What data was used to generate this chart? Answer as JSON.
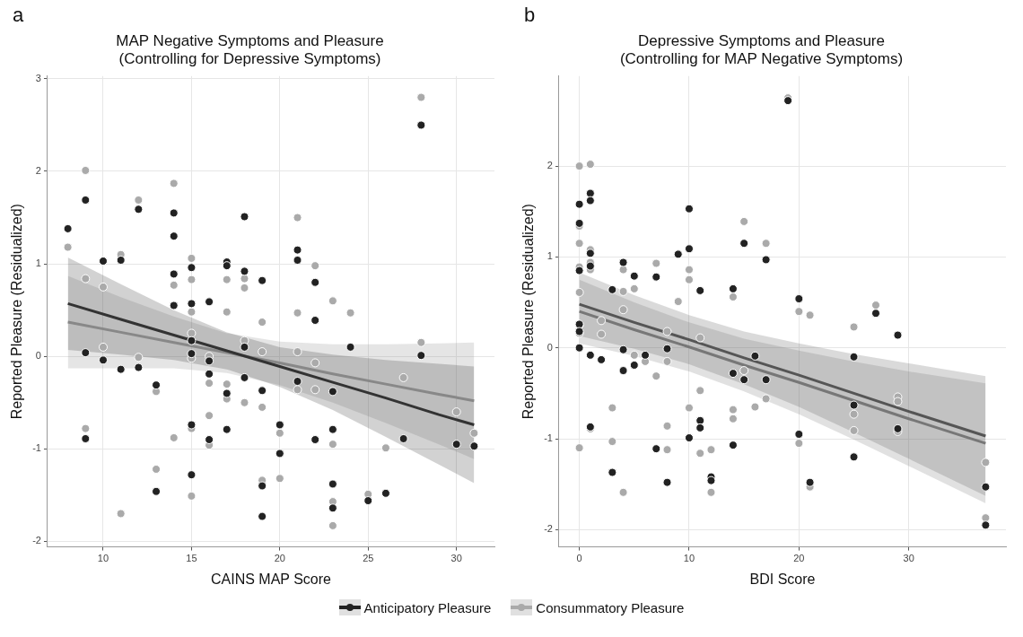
{
  "chart_data": [
    {
      "type": "scatter",
      "title": "MAP Negative Symptoms and Pleasure\n(Controlling for Depressive Symptoms)",
      "xlabel": "CAINS MAP Score",
      "ylabel": "Reported Pleasure (Residualized)",
      "annotations": [
        "a"
      ],
      "xlim": [
        6.85,
        32.15
      ],
      "ylim": [
        -2.06,
        3.03
      ],
      "xticks": [
        10,
        15,
        20,
        25,
        30
      ],
      "yticks": [
        -2,
        -1,
        0,
        1,
        2,
        3
      ],
      "grid": true,
      "legend": "bottom",
      "series": [
        {
          "type": "line",
          "color": "#333333",
          "x": [
            8,
            11,
            14,
            17,
            20,
            23,
            26,
            29,
            31
          ],
          "values": [
            0.57,
            0.4,
            0.23,
            0.06,
            -0.11,
            -0.28,
            -0.45,
            -0.63,
            -0.74
          ],
          "lower": [
            0.07,
            0.02,
            -0.04,
            -0.14,
            -0.33,
            -0.58,
            -0.87,
            -1.17,
            -1.37
          ],
          "upper": [
            1.07,
            0.78,
            0.5,
            0.26,
            0.1,
            0.02,
            -0.04,
            -0.08,
            -0.11
          ]
        },
        {
          "type": "line",
          "color": "#888888",
          "x": [
            8,
            11,
            14,
            17,
            20,
            23,
            26,
            29,
            31
          ],
          "values": [
            0.37,
            0.26,
            0.15,
            0.04,
            -0.07,
            -0.19,
            -0.3,
            -0.41,
            -0.48
          ],
          "lower": [
            -0.13,
            -0.13,
            -0.13,
            -0.18,
            -0.31,
            -0.5,
            -0.72,
            -0.95,
            -1.11
          ],
          "upper": [
            0.87,
            0.64,
            0.43,
            0.25,
            0.16,
            0.13,
            0.13,
            0.14,
            0.15
          ]
        },
        {
          "name": "Anticipatory Pleasure",
          "color": "#222222",
          "marker": "circle",
          "x": [
            8,
            9,
            9,
            9,
            10,
            10,
            11,
            11,
            12,
            12,
            13,
            13,
            14,
            14,
            14,
            14,
            15,
            15,
            15,
            15,
            15,
            15,
            16,
            16,
            16,
            16,
            17,
            17,
            17,
            17,
            18,
            18,
            18,
            18,
            19,
            19,
            19,
            19,
            20,
            20,
            21,
            21,
            21,
            22,
            22,
            22,
            23,
            23,
            23,
            23,
            24,
            25,
            26,
            27,
            28,
            28,
            30,
            31
          ],
          "values": [
            1.38,
            1.69,
            0.04,
            -0.89,
            1.03,
            -0.04,
            1.04,
            -0.14,
            1.59,
            -0.12,
            -0.31,
            -1.46,
            1.55,
            1.3,
            0.89,
            0.55,
            0.96,
            0.57,
            0.17,
            0.03,
            -0.74,
            -1.28,
            0.59,
            -0.05,
            -0.19,
            -0.9,
            1.02,
            0.98,
            -0.4,
            -0.79,
            1.51,
            0.92,
            0.1,
            -0.23,
            0.82,
            -0.37,
            -1.4,
            -1.73,
            -0.74,
            -1.05,
            1.15,
            1.04,
            -0.27,
            0.8,
            0.39,
            -0.9,
            -0.38,
            -0.79,
            -1.38,
            -1.64,
            0.1,
            -1.56,
            -1.48,
            -0.89,
            2.5,
            0.01,
            -0.95,
            -0.97
          ]
        },
        {
          "name": "Consummatory Pleasure",
          "color": "#aaaaaa",
          "marker": "circle",
          "x": [
            8,
            9,
            9,
            9,
            10,
            10,
            11,
            11,
            12,
            12,
            13,
            13,
            14,
            14,
            14,
            15,
            15,
            15,
            15,
            15,
            15,
            15,
            16,
            16,
            16,
            16,
            17,
            17,
            17,
            17,
            18,
            18,
            18,
            18,
            19,
            19,
            19,
            19,
            20,
            20,
            21,
            21,
            21,
            21,
            22,
            22,
            22,
            23,
            23,
            23,
            23,
            24,
            25,
            26,
            27,
            28,
            28,
            30,
            31
          ],
          "values": [
            1.18,
            2.01,
            0.84,
            -0.78,
            0.75,
            0.1,
            1.1,
            -1.7,
            1.69,
            -0.01,
            -0.38,
            -1.22,
            1.87,
            0.77,
            -0.88,
            1.06,
            0.83,
            0.48,
            0.25,
            -0.02,
            -0.78,
            -1.51,
            0,
            -0.29,
            -0.64,
            -0.96,
            0.83,
            0.48,
            -0.3,
            -0.46,
            0.84,
            0.74,
            0.17,
            -0.5,
            0.37,
            0.05,
            -0.55,
            -1.34,
            -0.83,
            -1.32,
            1.5,
            0.47,
            0.05,
            -0.36,
            0.98,
            -0.07,
            -0.36,
            0.6,
            -0.95,
            -1.57,
            -1.83,
            0.47,
            -1.49,
            -0.99,
            -0.23,
            2.8,
            0.15,
            -0.6,
            -0.83
          ]
        }
      ]
    },
    {
      "type": "scatter",
      "title": "Depressive Symptoms and Pleasure\n(Controlling for MAP Negative Symptoms)",
      "xlabel": "BDI Score",
      "ylabel": "Reported Pleasure (Residualized)",
      "annotations": [
        "b"
      ],
      "xlim": [
        -1.85,
        38.85
      ],
      "ylim": [
        -2.19,
        2.99
      ],
      "xticks": [
        0,
        10,
        20,
        30
      ],
      "yticks": [
        -2,
        -1,
        0,
        1,
        2
      ],
      "grid": true,
      "legend": "bottom",
      "series": [
        {
          "type": "line",
          "color": "#555555",
          "x": [
            0,
            5,
            10,
            15,
            20,
            25,
            30,
            37
          ],
          "values": [
            0.48,
            0.28,
            0.09,
            -0.11,
            -0.3,
            -0.5,
            -0.7,
            -0.97
          ],
          "lower": [
            0.13,
            -0.01,
            -0.18,
            -0.4,
            -0.65,
            -0.93,
            -1.22,
            -1.63
          ],
          "upper": [
            0.83,
            0.58,
            0.36,
            0.18,
            0.05,
            -0.07,
            -0.17,
            -0.31
          ]
        },
        {
          "type": "line",
          "color": "#777777",
          "x": [
            0,
            5,
            10,
            15,
            20,
            25,
            30,
            37
          ],
          "values": [
            0.4,
            0.2,
            0.01,
            -0.19,
            -0.38,
            -0.58,
            -0.78,
            -1.05
          ],
          "lower": [
            0.05,
            -0.09,
            -0.26,
            -0.48,
            -0.73,
            -1.01,
            -1.3,
            -1.71
          ],
          "upper": [
            0.75,
            0.5,
            0.28,
            0.1,
            -0.03,
            -0.15,
            -0.26,
            -0.39
          ]
        },
        {
          "name": "Anticipatory Pleasure",
          "color": "#222222",
          "marker": "circle",
          "x": [
            0,
            0,
            0,
            0,
            0,
            0,
            1,
            1,
            1,
            1,
            1,
            1,
            2,
            3,
            3,
            4,
            4,
            4,
            5,
            5,
            6,
            7,
            7,
            8,
            8,
            9,
            10,
            10,
            10,
            11,
            11,
            11,
            12,
            12,
            14,
            14,
            14,
            15,
            15,
            16,
            17,
            17,
            19,
            20,
            20,
            21,
            25,
            25,
            25,
            27,
            29,
            29,
            37,
            37
          ],
          "values": [
            1.58,
            1.37,
            0.85,
            0.26,
            0.18,
            0,
            1.7,
            1.62,
            1.04,
            0.9,
            -0.08,
            -0.87,
            -0.13,
            0.64,
            -1.37,
            0.94,
            -0.02,
            -0.25,
            0.79,
            -0.19,
            -0.08,
            0.78,
            -1.11,
            -0.01,
            -1.48,
            1.03,
            1.53,
            1.09,
            -0.99,
            0.63,
            -0.8,
            -0.88,
            -1.42,
            -1.46,
            0.65,
            -0.28,
            -1.07,
            1.15,
            -0.35,
            -0.09,
            0.97,
            -0.35,
            2.72,
            0.54,
            -0.95,
            -1.48,
            -0.1,
            -0.63,
            -1.2,
            0.38,
            0.14,
            -0.89,
            -1.53,
            -1.95
          ]
        },
        {
          "name": "Consummatory Pleasure",
          "color": "#aaaaaa",
          "marker": "circle",
          "x": [
            0,
            0,
            0,
            0,
            0,
            0,
            0,
            0,
            1,
            1,
            1,
            1,
            1,
            2,
            2,
            3,
            3,
            4,
            4,
            4,
            4,
            5,
            5,
            6,
            7,
            7,
            8,
            8,
            8,
            8,
            9,
            10,
            10,
            10,
            11,
            11,
            11,
            12,
            12,
            14,
            14,
            14,
            15,
            15,
            16,
            17,
            17,
            19,
            20,
            20,
            21,
            21,
            25,
            25,
            25,
            27,
            29,
            29,
            29,
            37,
            37
          ],
          "values": [
            2,
            1.34,
            1.15,
            0.89,
            0.61,
            0.25,
            0.16,
            -1.1,
            2.02,
            1.08,
            0.94,
            0.86,
            -0.89,
            0.3,
            0.15,
            -0.66,
            -1.03,
            0.86,
            0.62,
            0.42,
            -1.59,
            0.65,
            -0.08,
            -0.15,
            0.93,
            -0.31,
            0.18,
            -0.15,
            -0.86,
            -1.12,
            0.51,
            0.86,
            0.75,
            -0.66,
            0.11,
            -0.47,
            -1.16,
            -1.12,
            -1.59,
            0.56,
            -0.68,
            -0.78,
            1.39,
            -0.25,
            -0.65,
            1.15,
            -0.56,
            2.75,
            0.4,
            -1.05,
            0.36,
            -1.53,
            0.23,
            -0.73,
            -0.91,
            0.47,
            -0.54,
            -0.59,
            -0.92,
            -1.26,
            -1.87
          ]
        }
      ]
    }
  ]
}
